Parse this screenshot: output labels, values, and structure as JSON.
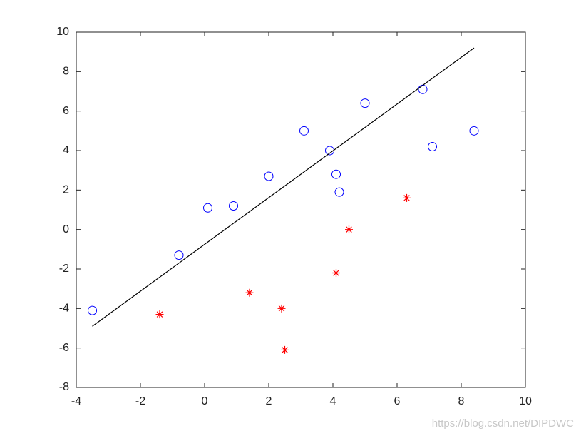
{
  "chart_data": {
    "type": "scatter",
    "xlim": [
      -4,
      10
    ],
    "xticks": [
      -4,
      -2,
      0,
      2,
      4,
      6,
      8,
      10
    ],
    "ylim": [
      -8,
      10
    ],
    "yticks": [
      -8,
      -6,
      -4,
      -2,
      0,
      2,
      4,
      6,
      8,
      10
    ],
    "grid": false,
    "series": [
      {
        "marker": "circle",
        "color": "#0000ff",
        "x": [
          -3.5,
          -0.8,
          0.1,
          0.9,
          2,
          3.1,
          3.9,
          4.1,
          4.2,
          5,
          6.8,
          7.1,
          8.4
        ],
        "values": [
          -4.1,
          -1.3,
          1.1,
          1.2,
          2.7,
          5,
          4,
          2.8,
          1.9,
          6.4,
          7.1,
          4.2,
          5
        ]
      },
      {
        "marker": "star",
        "color": "#ff0000",
        "x": [
          -1.4,
          1.4,
          2.4,
          2.5,
          4.1,
          4.5,
          6.3
        ],
        "values": [
          -4.3,
          -3.2,
          -4,
          -6.1,
          -2.2,
          0,
          1.6
        ]
      },
      {
        "marker": "line",
        "color": "#000000",
        "x": [
          -3.5,
          8.4
        ],
        "values": [
          -4.9,
          9.2
        ]
      }
    ],
    "watermark": "https://blog.csdn.net/DIPDWC"
  }
}
